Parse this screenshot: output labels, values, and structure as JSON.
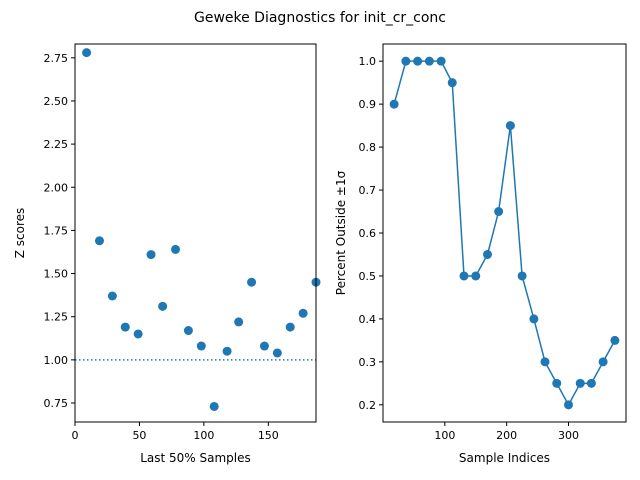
{
  "figure": {
    "suptitle": "Geweke Diagnostics for init_cr_conc"
  },
  "colors": {
    "series": "#1f77b4",
    "axes": "#000000",
    "background": "#ffffff"
  },
  "chart_data": [
    {
      "type": "scatter",
      "title": "",
      "xlabel": "Last 50% Samples",
      "ylabel": "Z scores",
      "xlim": [
        0,
        187
      ],
      "ylim": [
        0.64,
        2.83
      ],
      "xticks": [
        0,
        50,
        100,
        150
      ],
      "xtick_labels": [
        "0",
        "50",
        "100",
        "150"
      ],
      "yticks": [
        0.75,
        1.0,
        1.25,
        1.5,
        1.75,
        2.0,
        2.25,
        2.5,
        2.75
      ],
      "ytick_labels": [
        "0.75",
        "1.00",
        "1.25",
        "1.50",
        "1.75",
        "2.00",
        "2.25",
        "2.50",
        "2.75"
      ],
      "reference_line": {
        "y": 1.0,
        "style": "dotted"
      },
      "series": [
        {
          "x": [
            9,
            19,
            29,
            39,
            49,
            59,
            68,
            78,
            88,
            98,
            108,
            118,
            127,
            137,
            147,
            157,
            167,
            177,
            187
          ],
          "y": [
            2.78,
            1.69,
            1.37,
            1.19,
            1.15,
            1.61,
            1.31,
            1.64,
            1.17,
            1.08,
            0.73,
            1.05,
            1.22,
            1.45,
            1.08,
            1.04,
            1.19,
            1.27,
            1.45
          ]
        }
      ]
    },
    {
      "type": "line",
      "title": "",
      "xlabel": "Sample Indices",
      "ylabel": "Percent Outside ±1σ",
      "xlim": [
        0,
        393
      ],
      "ylim": [
        0.16,
        1.04
      ],
      "xticks": [
        100,
        200,
        300
      ],
      "xtick_labels": [
        "100",
        "200",
        "300"
      ],
      "yticks": [
        0.2,
        0.3,
        0.4,
        0.5,
        0.6,
        0.7,
        0.8,
        0.9,
        1.0
      ],
      "ytick_labels": [
        "0.2",
        "0.3",
        "0.4",
        "0.5",
        "0.6",
        "0.7",
        "0.8",
        "0.9",
        "1.0"
      ],
      "series": [
        {
          "x": [
            18,
            37,
            56,
            75,
            94,
            112,
            131,
            150,
            169,
            187,
            206,
            225,
            244,
            262,
            281,
            300,
            319,
            337,
            356,
            375
          ],
          "y": [
            0.9,
            1.0,
            1.0,
            1.0,
            1.0,
            0.95,
            0.5,
            0.5,
            0.55,
            0.65,
            0.85,
            0.5,
            0.4,
            0.3,
            0.25,
            0.2,
            0.25,
            0.25,
            0.3,
            0.35
          ]
        }
      ]
    }
  ]
}
